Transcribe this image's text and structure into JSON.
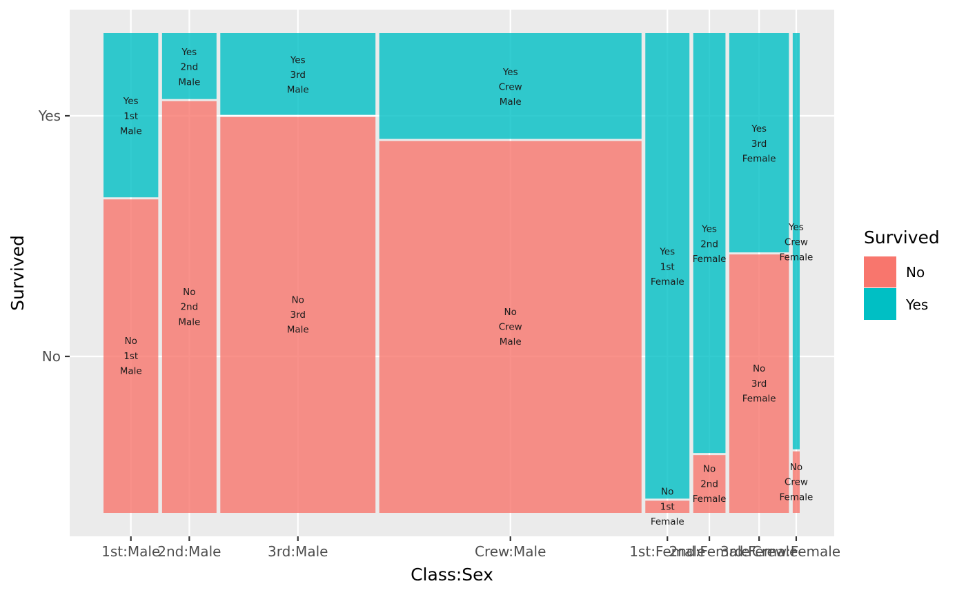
{
  "chart_data": {
    "type": "mosaic",
    "xlabel": "Class:Sex",
    "ylabel": "Survived",
    "x_tick_labels": [
      "1st:Male",
      "2nd:Male",
      "3rd:Male",
      "Crew:Male",
      "1st:Female",
      "2nd:Female",
      "3rd:Female",
      "Crew:Female"
    ],
    "y_tick_labels": [
      "No",
      "Yes"
    ],
    "legend": {
      "title": "Survived",
      "entries": [
        "No",
        "Yes"
      ],
      "position": "right"
    },
    "colors": {
      "No": "#F8766D",
      "Yes": "#00BFC4",
      "panel": "#EBEBEB",
      "grid": "#FFFFFF"
    },
    "fill_alpha": 0.8,
    "x_dividers_after_each_column": true,
    "columns": [
      {
        "class": "1st",
        "sex": "Male",
        "tick": "1st:Male",
        "no": 118,
        "yes": 62
      },
      {
        "class": "2nd",
        "sex": "Male",
        "tick": "2nd:Male",
        "no": 154,
        "yes": 25
      },
      {
        "class": "3rd",
        "sex": "Male",
        "tick": "3rd:Male",
        "no": 422,
        "yes": 88
      },
      {
        "class": "Crew",
        "sex": "Male",
        "tick": "Crew:Male",
        "no": 670,
        "yes": 192
      },
      {
        "class": "1st",
        "sex": "Female",
        "tick": "1st:Female",
        "no": 4,
        "yes": 141
      },
      {
        "class": "2nd",
        "sex": "Female",
        "tick": "2nd:Female",
        "no": 13,
        "yes": 93
      },
      {
        "class": "3rd",
        "sex": "Female",
        "tick": "3rd:Female",
        "no": 106,
        "yes": 90
      },
      {
        "class": "Crew",
        "sex": "Female",
        "tick": "Crew:Female",
        "no": 3,
        "yes": 20
      }
    ]
  }
}
